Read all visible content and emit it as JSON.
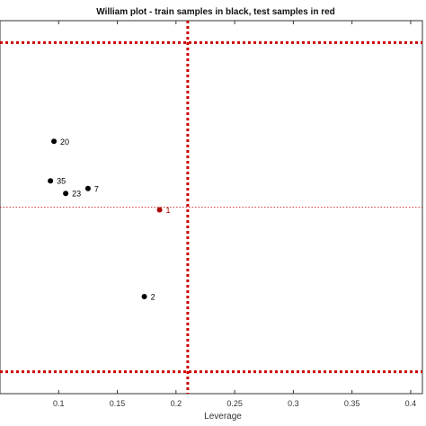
{
  "chart_data": {
    "type": "scatter",
    "title": "William plot - train samples in black, test samples in red",
    "xlabel": "Leverage",
    "ylabel": "",
    "xlim": [
      0.05,
      0.41
    ],
    "ylim": [
      -3.4,
      3.4
    ],
    "x_ticks": [
      "0.1",
      "0.15",
      "0.2",
      "0.25",
      "0.3",
      "0.35",
      "0.4"
    ],
    "x_tick_values": [
      0.1,
      0.15,
      0.2,
      0.25,
      0.3,
      0.35,
      0.4
    ],
    "grid": false,
    "legend": "none",
    "series": [
      {
        "role": "train",
        "color": "#000000",
        "points": [
          {
            "label": "20",
            "x": 0.096,
            "y": 1.2
          },
          {
            "label": "23",
            "x": 0.106,
            "y": 0.25
          },
          {
            "label": "7",
            "x": 0.125,
            "y": 0.34
          },
          {
            "label": "2",
            "x": 0.173,
            "y": -1.63
          },
          {
            "label": "35",
            "x": 0.093,
            "y": 0.48
          }
        ]
      },
      {
        "role": "test",
        "color": "#b00000",
        "points": [
          {
            "label": "1",
            "x": 0.186,
            "y": -0.05
          }
        ]
      }
    ],
    "threshold_lines": {
      "leverage_warning": 0.21,
      "residual_upper": 3.0,
      "residual_lower": -3.0,
      "zero_line": 0.0,
      "color": "#cc0000"
    }
  }
}
